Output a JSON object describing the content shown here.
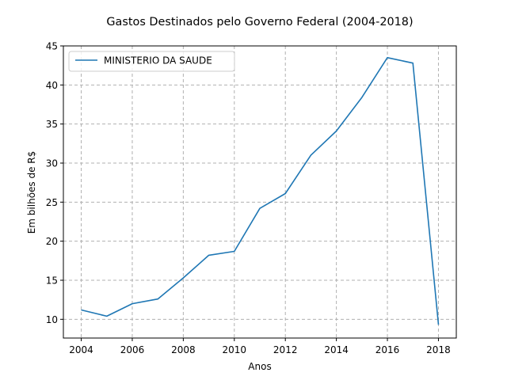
{
  "chart_data": {
    "type": "line",
    "title": "Gastos Destinados pelo Governo Federal (2004-2018)",
    "xlabel": "Anos",
    "ylabel": "Em bilhões de R$",
    "xlim": [
      2003.3,
      2018.7
    ],
    "ylim": [
      7.6,
      45.0
    ],
    "x_ticks": [
      2004,
      2006,
      2008,
      2010,
      2012,
      2014,
      2016,
      2018
    ],
    "y_ticks": [
      10,
      15,
      20,
      25,
      30,
      35,
      40,
      45
    ],
    "grid": true,
    "legend_position": "upper-left",
    "series": [
      {
        "name": "MINISTERIO DA SAUDE",
        "color": "#1f77b4",
        "x": [
          2004,
          2005,
          2006,
          2007,
          2008,
          2009,
          2010,
          2011,
          2012,
          2013,
          2014,
          2015,
          2016,
          2017,
          2018
        ],
        "values": [
          11.2,
          10.4,
          12.0,
          12.6,
          15.3,
          18.2,
          18.7,
          24.2,
          26.1,
          31.0,
          34.1,
          38.4,
          43.5,
          42.8,
          9.3
        ]
      }
    ]
  }
}
